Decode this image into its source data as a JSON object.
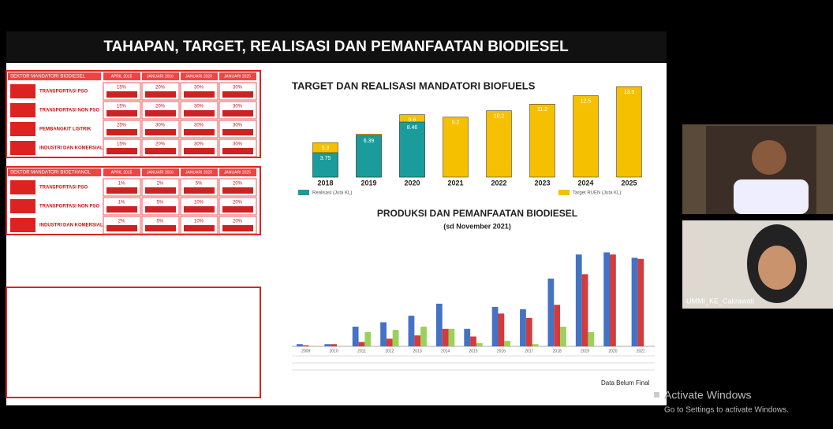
{
  "slide": {
    "title": "TAHAPAN, TARGET, REALISASI DAN PEMANFAATAN BIODIESEL",
    "mandates": [
      {
        "header": "SEKTOR MANDATORI BIODIESEL",
        "columns": [
          "APRIL 2015",
          "JANUARI 2016",
          "JANUARI 2020",
          "JANUARI 2025"
        ],
        "rows": [
          {
            "label": "TRANSPORTASI PSO",
            "cells": [
              "15%",
              "20%",
              "30%",
              "30%"
            ]
          },
          {
            "label": "TRANSPORTASI NON PSO",
            "cells": [
              "15%",
              "20%",
              "30%",
              "30%"
            ]
          },
          {
            "label": "PEMBANGKIT LISTRIK",
            "cells": [
              "25%",
              "30%",
              "30%",
              "30%"
            ]
          },
          {
            "label": "INDUSTRI DAN KOMERSIAL",
            "cells": [
              "15%",
              "20%",
              "30%",
              "30%"
            ]
          }
        ]
      },
      {
        "header": "SEKTOR MANDATORI BIOETHANOL",
        "columns": [
          "APRIL 2015",
          "JANUARI 2016",
          "JANUARI 2020",
          "JANUARI 2025"
        ],
        "rows": [
          {
            "label": "TRANSPORTASI PSO",
            "cells": [
              "1%",
              "2%",
              "5%",
              "20%"
            ]
          },
          {
            "label": "TRANSPORTASI NON PSO",
            "cells": [
              "1%",
              "5%",
              "10%",
              "20%"
            ]
          },
          {
            "label": "INDUSTRI DAN KOMERSIAL",
            "cells": [
              "2%",
              "5%",
              "10%",
              "20%"
            ]
          }
        ]
      }
    ],
    "biofuel_chart": {
      "title": "TARGET DAN REALISASI MANDATORI BIOFUELS",
      "categories": [
        "2018",
        "2019",
        "2020",
        "2021",
        "2022",
        "2023",
        "2024",
        "2025"
      ],
      "ylim": [
        0,
        14.5
      ],
      "series": [
        {
          "name": "Target RUEN (Juta KL)",
          "color": "#f5c000",
          "values": [
            5.3,
            6.6,
            9.6,
            9.2,
            10.2,
            11.2,
            12.5,
            13.9
          ]
        },
        {
          "name": "Realisasi (Juta KL)",
          "color": "#1a9c9c",
          "values": [
            3.75,
            6.39,
            8.46,
            null,
            null,
            null,
            null,
            null
          ]
        }
      ]
    },
    "production_chart": {
      "title": "PRODUKSI DAN PEMANFAATAN BIODIESEL",
      "subtitle": "(sd November 2021)",
      "categories": [
        "2009",
        "2010",
        "2011",
        "2012",
        "2013",
        "2014",
        "2015",
        "2016",
        "2017",
        "2018",
        "2019",
        "2020",
        "2021"
      ],
      "ylim": [
        0,
        9
      ],
      "series": [
        {
          "color": "#4472c4",
          "values": [
            0.2,
            0.2,
            1.8,
            2.2,
            2.8,
            3.9,
            1.6,
            3.6,
            3.4,
            6.2,
            8.4,
            8.6,
            8.1
          ]
        },
        {
          "color": "#d23c3c",
          "values": [
            0.1,
            0.2,
            0.4,
            0.7,
            1.0,
            1.6,
            0.9,
            3.0,
            2.6,
            3.8,
            6.6,
            8.4,
            8.0
          ]
        },
        {
          "color": "#9bd15a",
          "values": [
            0.05,
            0.05,
            1.3,
            1.5,
            1.8,
            1.6,
            0.3,
            0.5,
            0.2,
            1.8,
            1.3,
            0.0,
            0.0
          ]
        }
      ],
      "note": "Data Belum Final"
    }
  },
  "participants": [
    {
      "name": "UMMI_KE_Cakrawati"
    }
  ],
  "watermark": {
    "title": "Activate Windows",
    "subtitle": "Go to Settings to activate Windows."
  }
}
